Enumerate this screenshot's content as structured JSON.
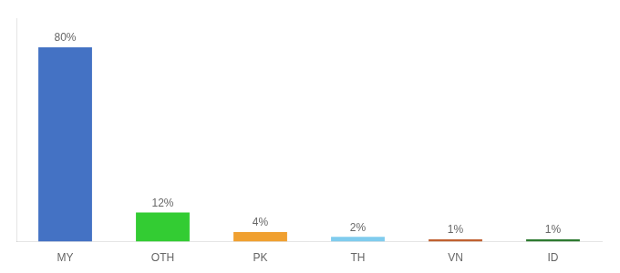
{
  "chart_data": {
    "type": "bar",
    "categories": [
      "MY",
      "OTH",
      "PK",
      "TH",
      "VN",
      "ID"
    ],
    "values": [
      80,
      12,
      4,
      2,
      1,
      1
    ],
    "value_labels": [
      "80%",
      "12%",
      "4%",
      "2%",
      "1%",
      "1%"
    ],
    "colors": [
      "#4472C4",
      "#33CC33",
      "#F0A030",
      "#80CCEE",
      "#C06030",
      "#2D7A30"
    ],
    "ylim": [
      0,
      92
    ],
    "grid": false,
    "data_labels": true,
    "tick_labels": "x"
  }
}
